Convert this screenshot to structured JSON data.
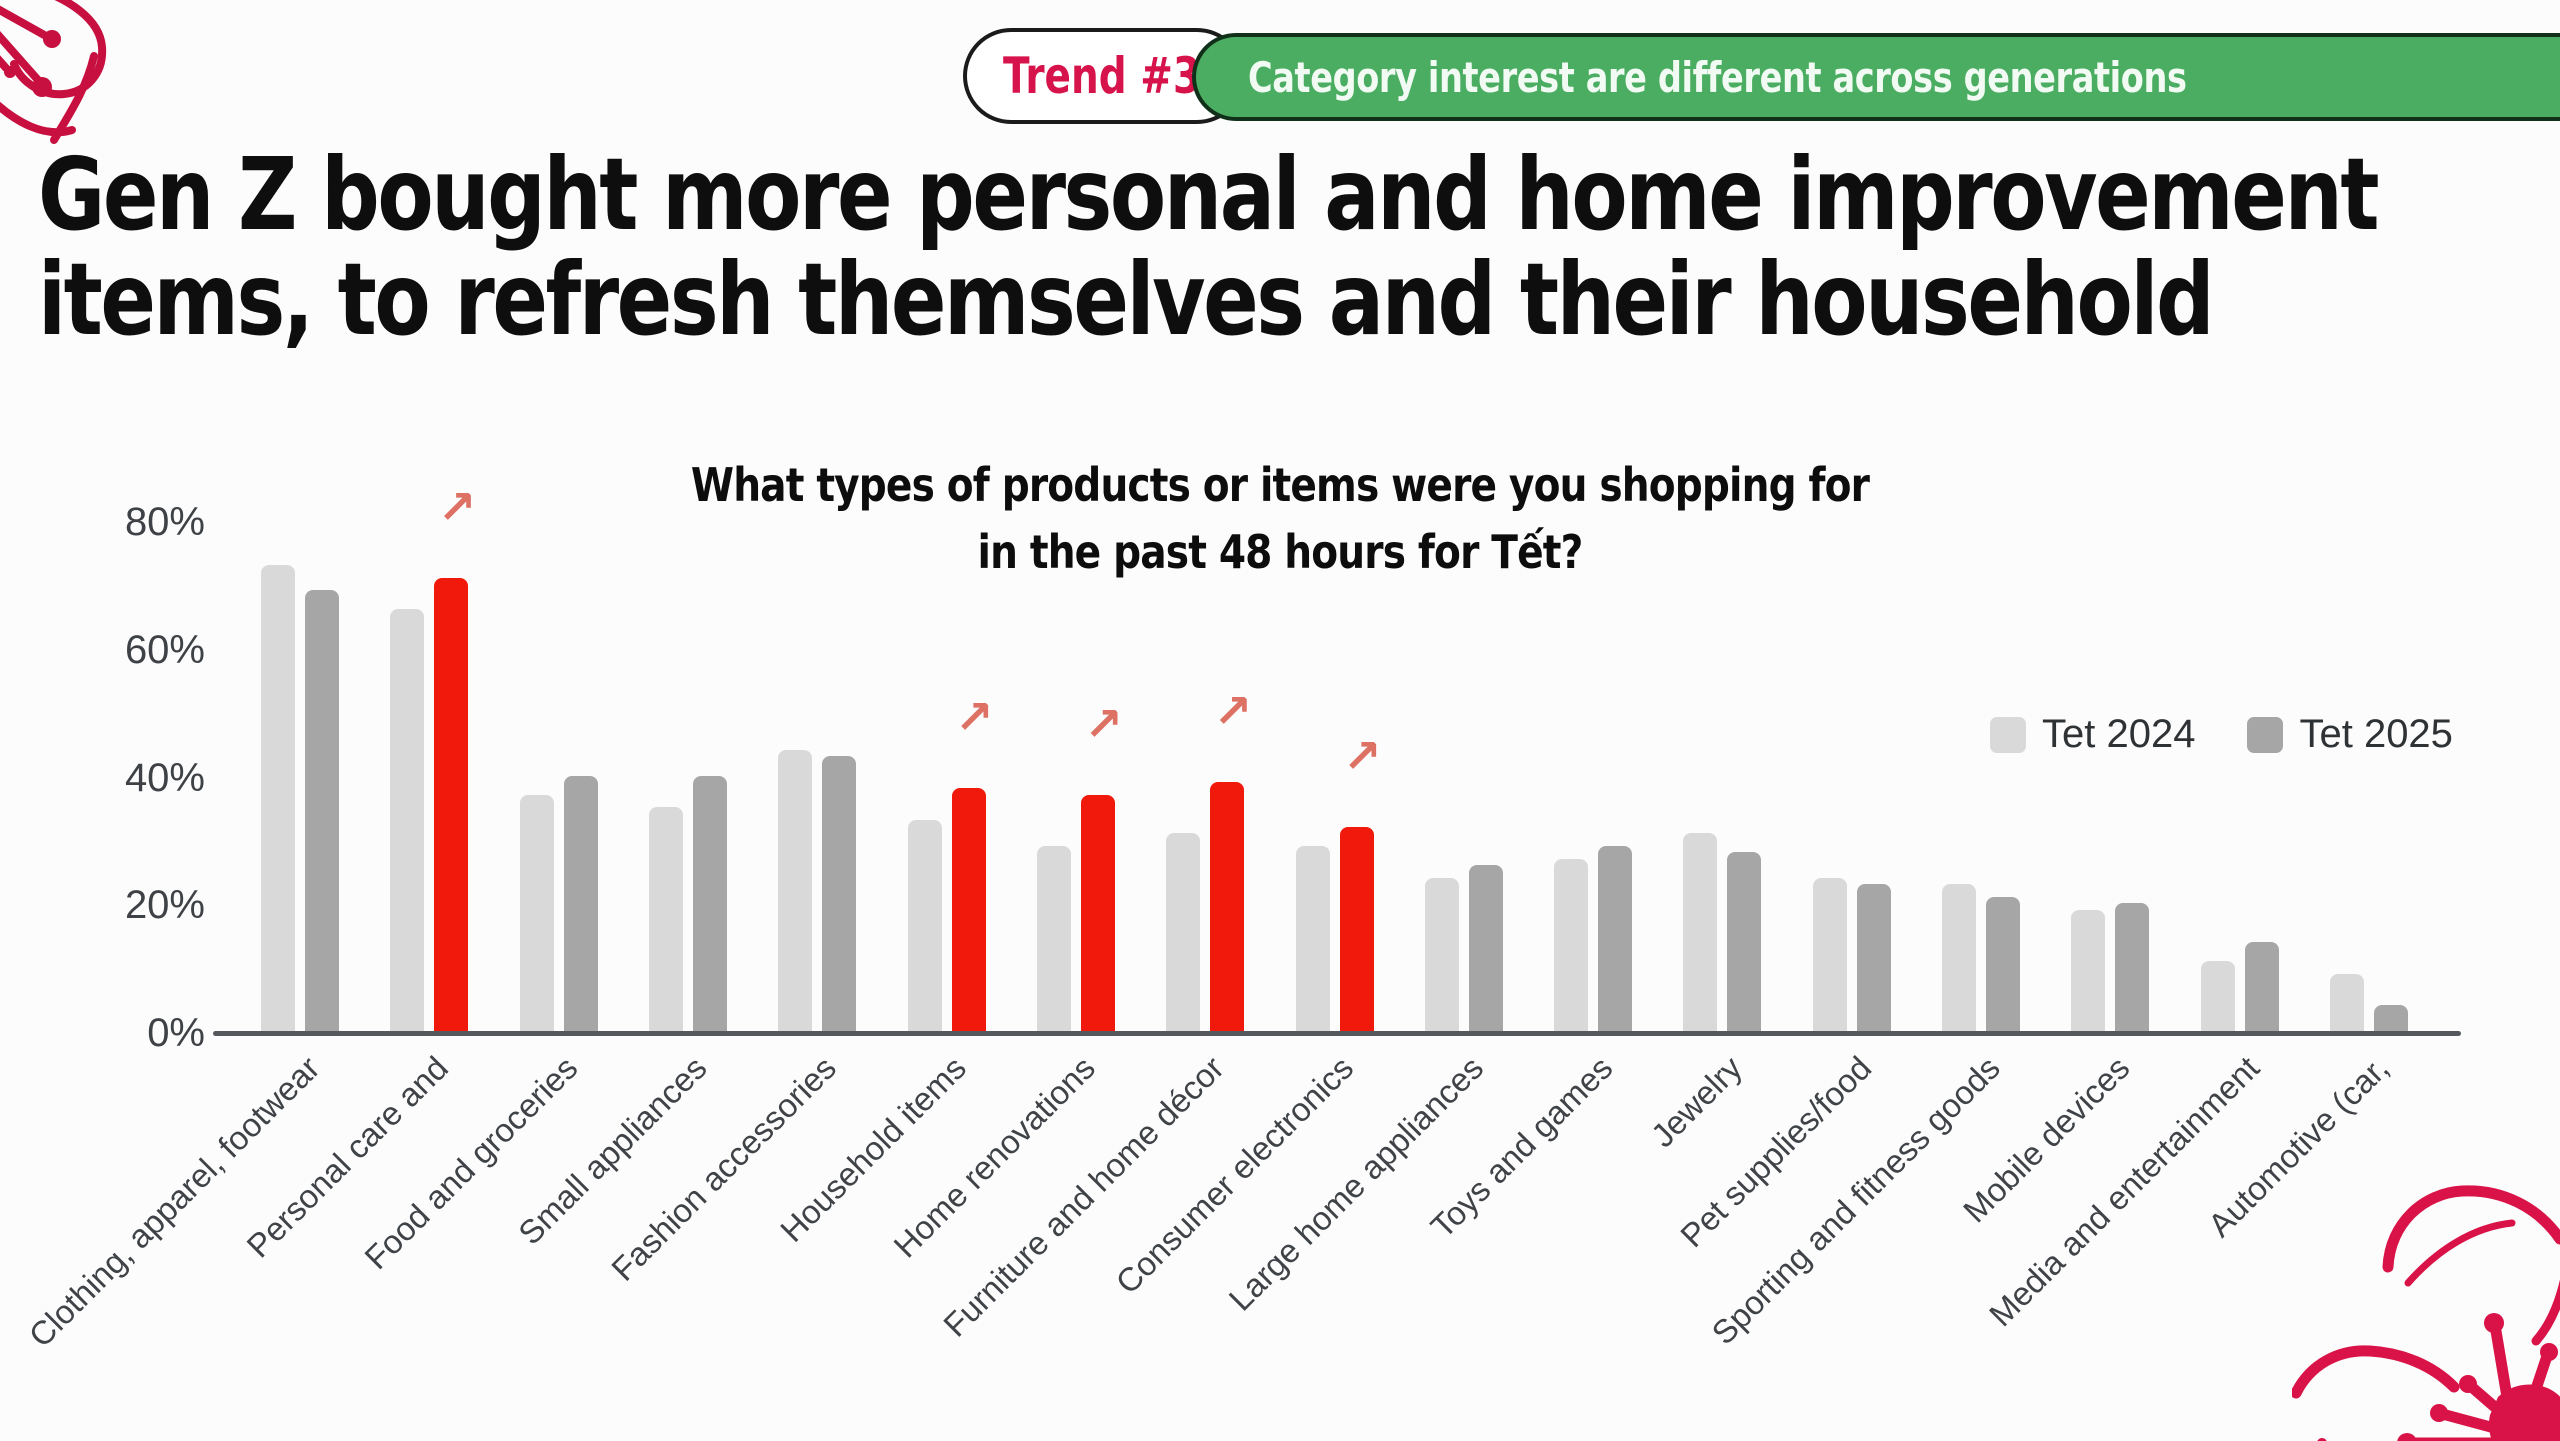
{
  "banner": {
    "trend_label": "Trend #3",
    "headline": "Category interest are different across generations"
  },
  "title_lines": [
    "Gen Z bought more personal and home improvement",
    "items, to refresh themselves and their household"
  ],
  "chart_title_lines": [
    "What types of products or items were you shopping for",
    "in the past 48 hours for Tết?"
  ],
  "legend": [
    {
      "label": "Tet 2024",
      "color": "#d9d9d9"
    },
    {
      "label": "Tet 2025",
      "color": "#a6a6a6"
    }
  ],
  "chart_data": {
    "type": "bar",
    "title": "What types of products or items were you shopping for in the past 48 hours for Tết?",
    "categories": [
      "Clothing, apparel, footwear",
      "Personal care and",
      "Food and groceries",
      "Small appliances",
      "Fashion accessories",
      "Household items",
      "Home renovations",
      "Furniture and home décor",
      "Consumer electronics",
      "Large home appliances",
      "Toys and games",
      "Jewelry",
      "Pet supplies/food",
      "Sporting and fitness goods",
      "Mobile devices",
      "Media and entertainment",
      "Automotive (car,"
    ],
    "series": [
      {
        "name": "Tet 2024",
        "color": "#d9d9d9",
        "values": [
          73,
          66,
          37,
          35,
          44,
          33,
          29,
          31,
          29,
          24,
          27,
          31,
          24,
          23,
          19,
          11,
          9
        ]
      },
      {
        "name": "Tet 2025",
        "color": "#a6a6a6",
        "values": [
          69,
          71,
          40,
          40,
          43,
          38,
          37,
          39,
          32,
          26,
          29,
          28,
          23,
          21,
          20,
          14,
          4
        ]
      }
    ],
    "highlight_indices": [
      1,
      5,
      6,
      7,
      8
    ],
    "highlight_color": "#f1190b",
    "increase_arrow": "↗",
    "arrow_color": "#dd7164",
    "y_ticks": [
      "0%",
      "20%",
      "40%",
      "60%",
      "80%"
    ],
    "y_tick_values": [
      0,
      20,
      40,
      60,
      80
    ],
    "ylim": [
      0,
      80
    ],
    "grid": false,
    "legend_position": "right",
    "xlabel": "",
    "ylabel": ""
  },
  "colors": {
    "background": "#fcfcfc",
    "title_text": "#0e0e0e",
    "accent_crimson": "#d6134a",
    "banner_green": "#4bad62",
    "banner_border": "#11301a",
    "pill_border": "#1b1b1b",
    "bar_2024": "#d9d9d9",
    "bar_2025": "#a6a6a6",
    "bar_highlight": "#f1190b",
    "arrow_salmon": "#dd7164",
    "axis_text": "#3e4246",
    "axis_line": "#55595d",
    "flower_crimson": "#d91348"
  }
}
